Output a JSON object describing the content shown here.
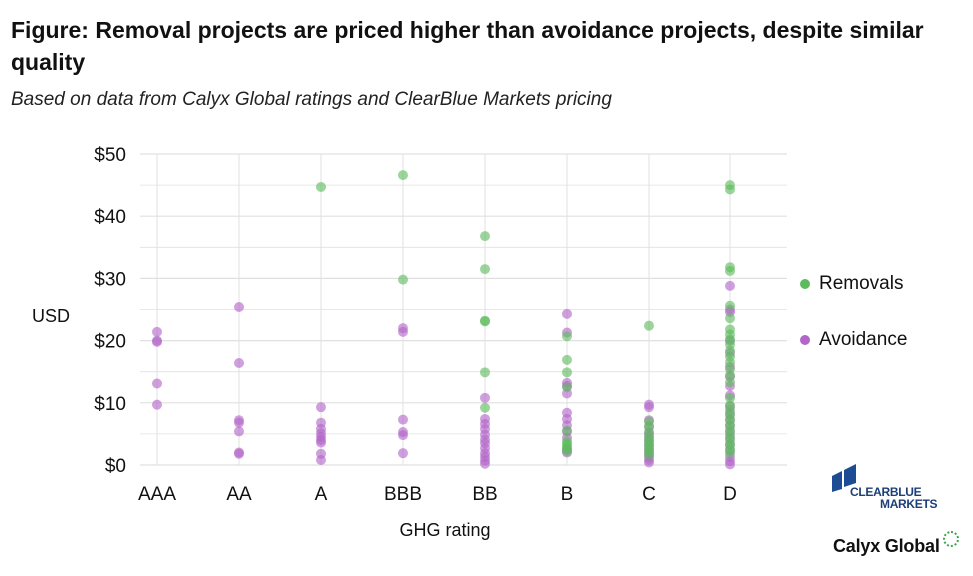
{
  "title": "Figure: Removal projects are priced higher than avoidance projects, despite similar quality",
  "subtitle": "Based on data from Calyx Global ratings and ClearBlue Markets pricing",
  "colors": {
    "removals": "#5dbb5d",
    "avoidance": "#b266c8",
    "grid": "#e0e0e0"
  },
  "logos": {
    "clearblue_markets_line1": "CLEARBLUE",
    "clearblue_markets_line2": "MARKETS",
    "calyx_global": "Calyx Global"
  },
  "chart_data": {
    "type": "scatter",
    "xlabel": "GHG rating",
    "ylabel": "USD",
    "categories": [
      "AAA",
      "AA",
      "A",
      "BBB",
      "BB",
      "B",
      "C",
      "D"
    ],
    "ylim": [
      0,
      50
    ],
    "yticks": [
      "$0",
      "$10",
      "$20",
      "$30",
      "$40",
      "$50"
    ],
    "ytick_values": [
      0,
      10,
      20,
      30,
      40,
      50
    ],
    "grid": true,
    "legend_position": "right",
    "series": [
      {
        "name": "Removals",
        "color": "#5dbb5d",
        "points": [
          [
            "A",
            44.7
          ],
          [
            "BBB",
            46.6
          ],
          [
            "BBB",
            29.8
          ],
          [
            "BB",
            36.8
          ],
          [
            "BB",
            31.5
          ],
          [
            "BB",
            23.2
          ],
          [
            "BB",
            23.1
          ],
          [
            "BB",
            14.9
          ],
          [
            "BB",
            9.2
          ],
          [
            "B",
            20.7
          ],
          [
            "B",
            16.9
          ],
          [
            "B",
            14.9
          ],
          [
            "B",
            12.5
          ],
          [
            "B",
            5.5
          ],
          [
            "B",
            3.8
          ],
          [
            "B",
            3.4
          ],
          [
            "B",
            3.0
          ],
          [
            "B",
            2.6
          ],
          [
            "B",
            2.2
          ],
          [
            "C",
            22.4
          ],
          [
            "C",
            7.0
          ],
          [
            "C",
            6.2
          ],
          [
            "C",
            5.2
          ],
          [
            "C",
            4.4
          ],
          [
            "C",
            3.8
          ],
          [
            "C",
            3.3
          ],
          [
            "C",
            2.8
          ],
          [
            "C",
            2.2
          ],
          [
            "C",
            1.6
          ],
          [
            "D",
            45.0
          ],
          [
            "D",
            44.3
          ],
          [
            "D",
            31.8
          ],
          [
            "D",
            31.2
          ],
          [
            "D",
            25.6
          ],
          [
            "D",
            23.6
          ],
          [
            "D",
            21.8
          ],
          [
            "D",
            21.0
          ],
          [
            "D",
            20.2
          ],
          [
            "D",
            19.4
          ],
          [
            "D",
            18.4
          ],
          [
            "D",
            17.4
          ],
          [
            "D",
            16.5
          ],
          [
            "D",
            15.4
          ],
          [
            "D",
            14.4
          ],
          [
            "D",
            13.3
          ],
          [
            "D",
            10.8
          ],
          [
            "D",
            9.6
          ],
          [
            "D",
            8.8
          ],
          [
            "D",
            8.0
          ],
          [
            "D",
            7.2
          ],
          [
            "D",
            6.4
          ],
          [
            "D",
            5.6
          ],
          [
            "D",
            4.8
          ],
          [
            "D",
            4.0
          ],
          [
            "D",
            3.3
          ],
          [
            "D",
            2.6
          ],
          [
            "D",
            1.9
          ]
        ]
      },
      {
        "name": "Avoidance",
        "color": "#b266c8",
        "points": [
          [
            "AAA",
            21.4
          ],
          [
            "AAA",
            20.0
          ],
          [
            "AAA",
            19.8
          ],
          [
            "AAA",
            13.1
          ],
          [
            "AAA",
            9.7
          ],
          [
            "AA",
            25.4
          ],
          [
            "AA",
            16.4
          ],
          [
            "AA",
            7.2
          ],
          [
            "AA",
            6.8
          ],
          [
            "AA",
            5.4
          ],
          [
            "AA",
            2.0
          ],
          [
            "AA",
            1.8
          ],
          [
            "A",
            9.3
          ],
          [
            "A",
            6.8
          ],
          [
            "A",
            5.8
          ],
          [
            "A",
            5.1
          ],
          [
            "A",
            4.5
          ],
          [
            "A",
            4.0
          ],
          [
            "A",
            3.6
          ],
          [
            "A",
            1.8
          ],
          [
            "A",
            0.8
          ],
          [
            "BBB",
            22.0
          ],
          [
            "BBB",
            21.4
          ],
          [
            "BBB",
            7.3
          ],
          [
            "BBB",
            5.3
          ],
          [
            "BBB",
            4.8
          ],
          [
            "BBB",
            1.9
          ],
          [
            "BB",
            10.8
          ],
          [
            "BB",
            7.4
          ],
          [
            "BB",
            6.6
          ],
          [
            "BB",
            5.8
          ],
          [
            "BB",
            4.9
          ],
          [
            "BB",
            4.1
          ],
          [
            "BB",
            3.5
          ],
          [
            "BB",
            2.7
          ],
          [
            "BB",
            1.9
          ],
          [
            "BB",
            1.3
          ],
          [
            "BB",
            0.7
          ],
          [
            "BB",
            0.2
          ],
          [
            "B",
            24.3
          ],
          [
            "B",
            21.3
          ],
          [
            "B",
            13.2
          ],
          [
            "B",
            12.7
          ],
          [
            "B",
            11.5
          ],
          [
            "B",
            8.4
          ],
          [
            "B",
            7.4
          ],
          [
            "B",
            6.4
          ],
          [
            "B",
            5.4
          ],
          [
            "B",
            4.4
          ],
          [
            "B",
            2.5
          ],
          [
            "B",
            2.0
          ],
          [
            "C",
            9.7
          ],
          [
            "C",
            9.3
          ],
          [
            "C",
            7.2
          ],
          [
            "C",
            6.1
          ],
          [
            "C",
            5.2
          ],
          [
            "C",
            4.6
          ],
          [
            "C",
            3.9
          ],
          [
            "C",
            3.2
          ],
          [
            "C",
            2.5
          ],
          [
            "C",
            1.9
          ],
          [
            "C",
            1.3
          ],
          [
            "C",
            0.8
          ],
          [
            "C",
            0.4
          ],
          [
            "D",
            28.8
          ],
          [
            "D",
            25.0
          ],
          [
            "D",
            24.6
          ],
          [
            "D",
            20.0
          ],
          [
            "D",
            18.0
          ],
          [
            "D",
            15.8
          ],
          [
            "D",
            14.2
          ],
          [
            "D",
            12.7
          ],
          [
            "D",
            11.2
          ],
          [
            "D",
            9.4
          ],
          [
            "D",
            8.3
          ],
          [
            "D",
            7.3
          ],
          [
            "D",
            6.3
          ],
          [
            "D",
            5.3
          ],
          [
            "D",
            4.3
          ],
          [
            "D",
            3.3
          ],
          [
            "D",
            2.3
          ],
          [
            "D",
            1.3
          ],
          [
            "D",
            0.6
          ],
          [
            "D",
            0.1
          ]
        ]
      }
    ]
  }
}
